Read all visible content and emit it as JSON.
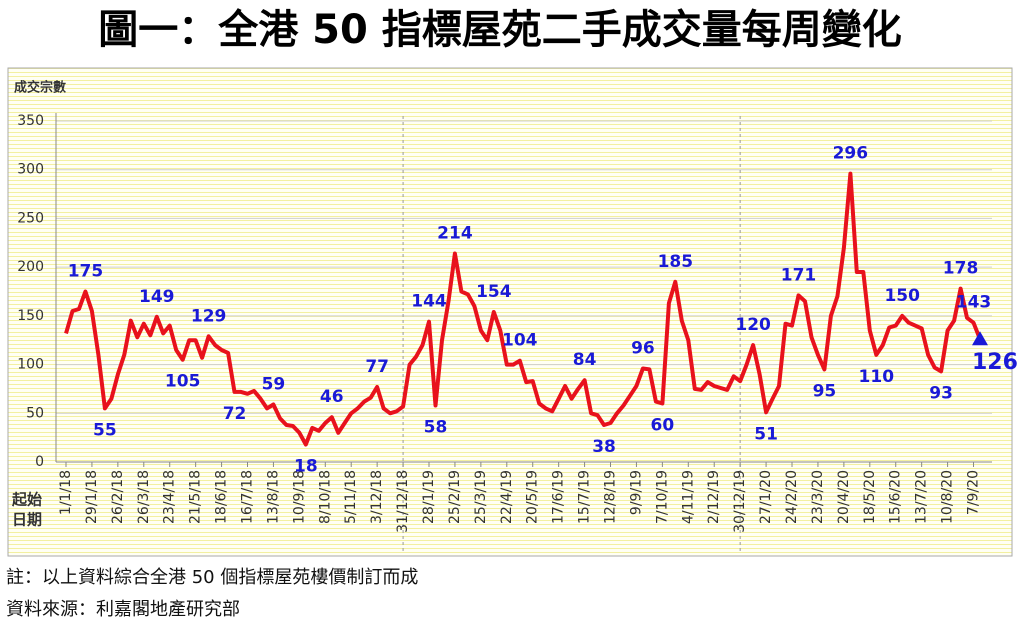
{
  "chart_data": {
    "type": "line",
    "title": "圖一：全港 50 指標屋苑二手成交量每周變化",
    "y_label": "成交宗數",
    "x_label": [
      "起始",
      "日期"
    ],
    "notes": [
      "註：以上資料綜合全港 50 個指標屋苑樓價制訂而成",
      "資料來源：利嘉閣地產研究部"
    ],
    "categories": [
      "1/1/18",
      null,
      null,
      null,
      "29/1/18",
      null,
      null,
      null,
      "26/2/18",
      null,
      null,
      null,
      "26/3/18",
      null,
      null,
      null,
      "23/4/18",
      null,
      null,
      null,
      "21/5/18",
      null,
      null,
      null,
      "18/6/18",
      null,
      null,
      null,
      "16/7/18",
      null,
      null,
      null,
      "13/8/18",
      null,
      null,
      null,
      "10/9/18",
      null,
      null,
      null,
      "8/10/18",
      null,
      null,
      null,
      "5/11/18",
      null,
      null,
      null,
      "3/12/18",
      null,
      null,
      null,
      "31/12/18",
      null,
      null,
      null,
      "28/1/19",
      null,
      null,
      null,
      "25/2/19",
      null,
      null,
      null,
      "25/3/19",
      null,
      null,
      null,
      "22/4/19",
      null,
      null,
      null,
      "20/5/19",
      null,
      null,
      null,
      "17/6/19",
      null,
      null,
      null,
      "15/7/19",
      null,
      null,
      null,
      "12/8/19",
      null,
      null,
      null,
      "9/9/19",
      null,
      null,
      null,
      "7/10/19",
      null,
      null,
      null,
      "4/11/19",
      null,
      null,
      null,
      "2/12/19",
      null,
      null,
      null,
      "30/12/19",
      null,
      null,
      null,
      "27/1/20",
      null,
      null,
      null,
      "24/2/20",
      null,
      null,
      null,
      "23/3/20",
      null,
      null,
      null,
      "20/4/20",
      null,
      null,
      null,
      "18/5/20",
      null,
      null,
      null,
      "15/6/20",
      null,
      null,
      null,
      "13/7/20",
      null,
      null,
      null,
      "10/8/20",
      null,
      null,
      null,
      "7/9/20",
      null
    ],
    "series": [
      {
        "name": "成交宗數",
        "color": "#e8121c",
        "values": [
          132,
          155,
          157,
          175,
          155,
          110,
          55,
          65,
          90,
          110,
          145,
          128,
          142,
          130,
          149,
          132,
          140,
          115,
          105,
          125,
          125,
          107,
          129,
          120,
          115,
          112,
          72,
          72,
          70,
          73,
          65,
          55,
          59,
          45,
          38,
          37,
          30,
          18,
          35,
          32,
          40,
          46,
          30,
          40,
          50,
          55,
          62,
          66,
          77,
          55,
          50,
          52,
          57,
          100,
          108,
          120,
          144,
          58,
          125,
          165,
          214,
          175,
          172,
          160,
          135,
          125,
          154,
          135,
          100,
          100,
          104,
          82,
          83,
          60,
          55,
          52,
          65,
          78,
          65,
          75,
          84,
          50,
          48,
          38,
          40,
          50,
          58,
          68,
          78,
          96,
          95,
          62,
          60,
          163,
          185,
          145,
          125,
          75,
          74,
          82,
          78,
          76,
          74,
          88,
          83,
          100,
          120,
          90,
          51,
          65,
          78,
          142,
          140,
          171,
          165,
          128,
          110,
          95,
          150,
          170,
          220,
          296,
          195,
          195,
          135,
          110,
          120,
          138,
          140,
          150,
          143,
          140,
          137,
          110,
          97,
          93,
          135,
          145,
          178,
          148,
          143,
          126
        ]
      }
    ],
    "labeled_points": [
      3,
      6,
      14,
      18,
      22,
      26,
      32,
      37,
      41,
      48,
      56,
      57,
      60,
      66,
      70,
      80,
      83,
      89,
      92,
      94,
      106,
      108,
      113,
      117,
      121,
      125,
      129,
      135,
      138,
      140,
      141
    ],
    "label_color": "#1a1ad6",
    "end_marker": "triangle",
    "dividers": [
      52,
      104
    ],
    "ylim": [
      0,
      350
    ],
    "yticks": [
      0,
      50,
      100,
      150,
      200,
      250,
      300,
      350
    ],
    "grid": true
  }
}
